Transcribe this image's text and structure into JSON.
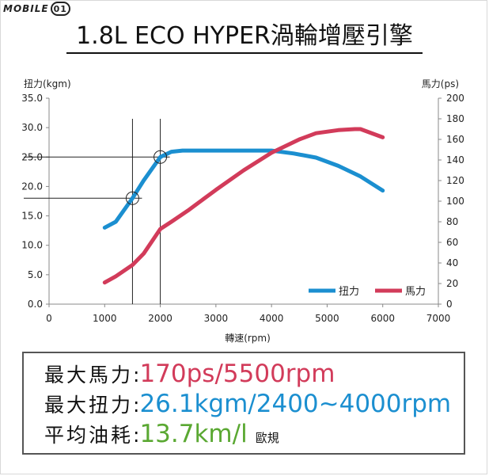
{
  "logo": {
    "text": "MOBILE",
    "badge": "01"
  },
  "title": "1.8L ECO HYPER渦輪增壓引擎",
  "colors": {
    "torque": "#1b8fd0",
    "power": "#d23b5a",
    "eco": "#5aa832"
  },
  "chart_data": {
    "type": "line",
    "title": "1.8L ECO HYPER渦輪增壓引擎",
    "xlabel": "轉速(rpm)",
    "ylabel_left": "扭力(kgm)",
    "ylabel_right": "馬力(ps)",
    "xlim": [
      0,
      7000
    ],
    "ylim_left": [
      0,
      35
    ],
    "ylim_right": [
      0,
      200
    ],
    "x_ticks": [
      "0",
      "1000",
      "2000",
      "3000",
      "4000",
      "5000",
      "6000",
      "7000"
    ],
    "y_left_ticks": [
      "0.0",
      "5.0",
      "10.0",
      "15.0",
      "20.0",
      "25.0",
      "30.0",
      "35.0"
    ],
    "y_right_ticks": [
      "0",
      "20",
      "40",
      "60",
      "80",
      "100",
      "120",
      "140",
      "160",
      "180",
      "200"
    ],
    "grid": false,
    "legend_position": "bottom-right",
    "series": [
      {
        "name": "扭力",
        "axis": "left",
        "x": [
          1000,
          1200,
          1500,
          1700,
          2000,
          2200,
          2400,
          3000,
          3500,
          4000,
          4400,
          4800,
          5200,
          5600,
          6000
        ],
        "y": [
          13.0,
          14.0,
          18.0,
          21.0,
          25.0,
          25.9,
          26.1,
          26.1,
          26.1,
          26.1,
          25.6,
          24.9,
          23.5,
          21.7,
          19.3
        ]
      },
      {
        "name": "馬力",
        "axis": "right",
        "x": [
          1000,
          1200,
          1500,
          1700,
          2000,
          2200,
          2500,
          3000,
          3500,
          4000,
          4500,
          4800,
          5200,
          5500,
          5600,
          6000
        ],
        "y": [
          21,
          27,
          38,
          49,
          73,
          80,
          91,
          111,
          130,
          147,
          160,
          166,
          169,
          170,
          170,
          162
        ]
      }
    ],
    "reference_lines": [
      {
        "rpm": 1500,
        "torque": 18.0
      },
      {
        "rpm": 2000,
        "torque": 25.0
      }
    ]
  },
  "specs": [
    {
      "label": "最大馬力",
      "colon": ":",
      "value": "170ps/5500rpm",
      "color_key": "power",
      "note": ""
    },
    {
      "label": "最大扭力",
      "colon": ":",
      "value": "26.1kgm/2400~4000rpm",
      "color_key": "torque",
      "note": ""
    },
    {
      "label": "平均油耗",
      "colon": ":",
      "value": "13.7km/l",
      "color_key": "eco",
      "note": "歐規"
    }
  ]
}
